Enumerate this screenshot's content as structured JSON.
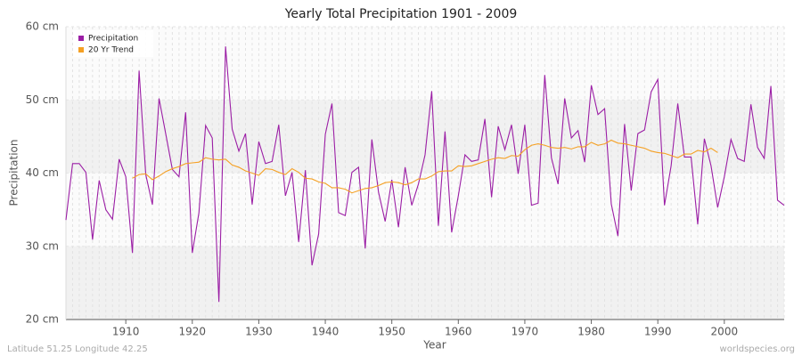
{
  "chart_data": {
    "type": "line",
    "title": "Yearly Total Precipitation 1901 - 2009",
    "x_label": "Year",
    "y_label": "Precipitation",
    "footer_left": "Latitude 51.25 Longitude 42.25",
    "footer_right": "worldspecies.org",
    "x": [
      1901,
      1902,
      1903,
      1904,
      1905,
      1906,
      1907,
      1908,
      1909,
      1910,
      1911,
      1912,
      1913,
      1914,
      1915,
      1916,
      1917,
      1918,
      1919,
      1920,
      1921,
      1922,
      1923,
      1924,
      1925,
      1926,
      1927,
      1928,
      1929,
      1930,
      1931,
      1932,
      1933,
      1934,
      1935,
      1936,
      1937,
      1938,
      1939,
      1940,
      1941,
      1942,
      1943,
      1944,
      1945,
      1946,
      1947,
      1948,
      1949,
      1950,
      1951,
      1952,
      1953,
      1954,
      1955,
      1956,
      1957,
      1958,
      1959,
      1960,
      1961,
      1962,
      1963,
      1964,
      1965,
      1966,
      1967,
      1968,
      1969,
      1970,
      1971,
      1972,
      1973,
      1974,
      1975,
      1976,
      1977,
      1978,
      1979,
      1980,
      1981,
      1982,
      1983,
      1984,
      1985,
      1986,
      1987,
      1988,
      1989,
      1990,
      1991,
      1992,
      1993,
      1994,
      1995,
      1996,
      1997,
      1998,
      1999,
      2000,
      2001,
      2002,
      2003,
      2004,
      2005,
      2006,
      2007,
      2008,
      2009
    ],
    "series": [
      {
        "name": "Precipitation",
        "color": "#9b1ea5",
        "values": [
          33.6,
          41.3,
          41.3,
          40.1,
          30.9,
          39.0,
          35.0,
          33.7,
          41.9,
          39.5,
          29.1,
          54.0,
          39.8,
          35.7,
          50.2,
          45.4,
          40.5,
          39.5,
          48.3,
          29.1,
          34.6,
          46.5,
          44.8,
          22.4,
          57.3,
          46.0,
          43.0,
          45.4,
          35.7,
          44.3,
          41.3,
          41.6,
          46.6,
          36.9,
          40.1,
          30.6,
          40.4,
          27.4,
          31.7,
          45.3,
          49.5,
          34.6,
          34.2,
          40.1,
          40.8,
          29.7,
          44.6,
          37.4,
          33.4,
          39.1,
          32.6,
          40.8,
          35.6,
          38.5,
          42.5,
          51.2,
          32.8,
          45.7,
          31.9,
          36.9,
          42.5,
          41.6,
          41.8,
          47.4,
          36.7,
          46.4,
          43.2,
          46.6,
          39.9,
          46.6,
          35.6,
          35.9,
          53.4,
          42.1,
          38.5,
          50.2,
          44.8,
          45.8,
          41.5,
          52.0,
          48.0,
          48.8,
          35.8,
          31.4,
          46.7,
          37.6,
          45.4,
          45.9,
          51.1,
          52.8,
          35.6,
          41.0,
          49.5,
          42.2,
          42.2,
          33.0,
          44.7,
          41.0,
          35.3,
          39.5,
          44.6,
          42.0,
          41.6,
          49.4,
          43.5,
          42.0,
          51.9,
          36.3,
          35.6
        ]
      },
      {
        "name": "20 Yr Trend",
        "color": "#f5a023",
        "values": [
          null,
          null,
          null,
          null,
          null,
          null,
          null,
          null,
          null,
          null,
          39.3,
          39.8,
          39.9,
          39.1,
          39.6,
          40.2,
          40.6,
          40.9,
          41.3,
          41.4,
          41.5,
          42.1,
          41.9,
          41.8,
          41.9,
          41.1,
          40.8,
          40.3,
          40.0,
          39.7,
          40.6,
          40.5,
          40.1,
          39.8,
          40.6,
          40.1,
          39.3,
          39.2,
          38.8,
          38.6,
          38.0,
          38.0,
          37.8,
          37.3,
          37.6,
          37.9,
          38.0,
          38.3,
          38.7,
          38.8,
          38.7,
          38.4,
          38.7,
          39.2,
          39.2,
          39.6,
          40.2,
          40.3,
          40.3,
          41.0,
          40.9,
          41.0,
          41.3,
          41.6,
          41.9,
          42.1,
          42.0,
          42.4,
          42.3,
          43.2,
          43.8,
          44.0,
          43.8,
          43.5,
          43.4,
          43.5,
          43.3,
          43.6,
          43.6,
          44.2,
          43.8,
          44.0,
          44.5,
          44.1,
          44.0,
          43.8,
          43.6,
          43.4,
          43.0,
          42.8,
          42.7,
          42.4,
          42.1,
          42.6,
          42.6,
          43.1,
          42.9,
          43.4,
          42.8,
          null,
          null,
          null,
          null,
          null,
          null,
          null,
          null,
          null,
          null
        ]
      }
    ],
    "xlim": [
      1901,
      2009
    ],
    "xticks": [
      1910,
      1920,
      1930,
      1940,
      1950,
      1960,
      1970,
      1980,
      1990,
      2000
    ],
    "ylim": [
      20,
      60
    ],
    "yticks": [
      {
        "value": 20,
        "label": "20 cm"
      },
      {
        "value": 30,
        "label": "30 cm"
      },
      {
        "value": 40,
        "label": "40 cm"
      },
      {
        "value": 50,
        "label": "50 cm"
      },
      {
        "value": 60,
        "label": "60 cm"
      }
    ],
    "grid": true,
    "legend_position": "top-left"
  }
}
